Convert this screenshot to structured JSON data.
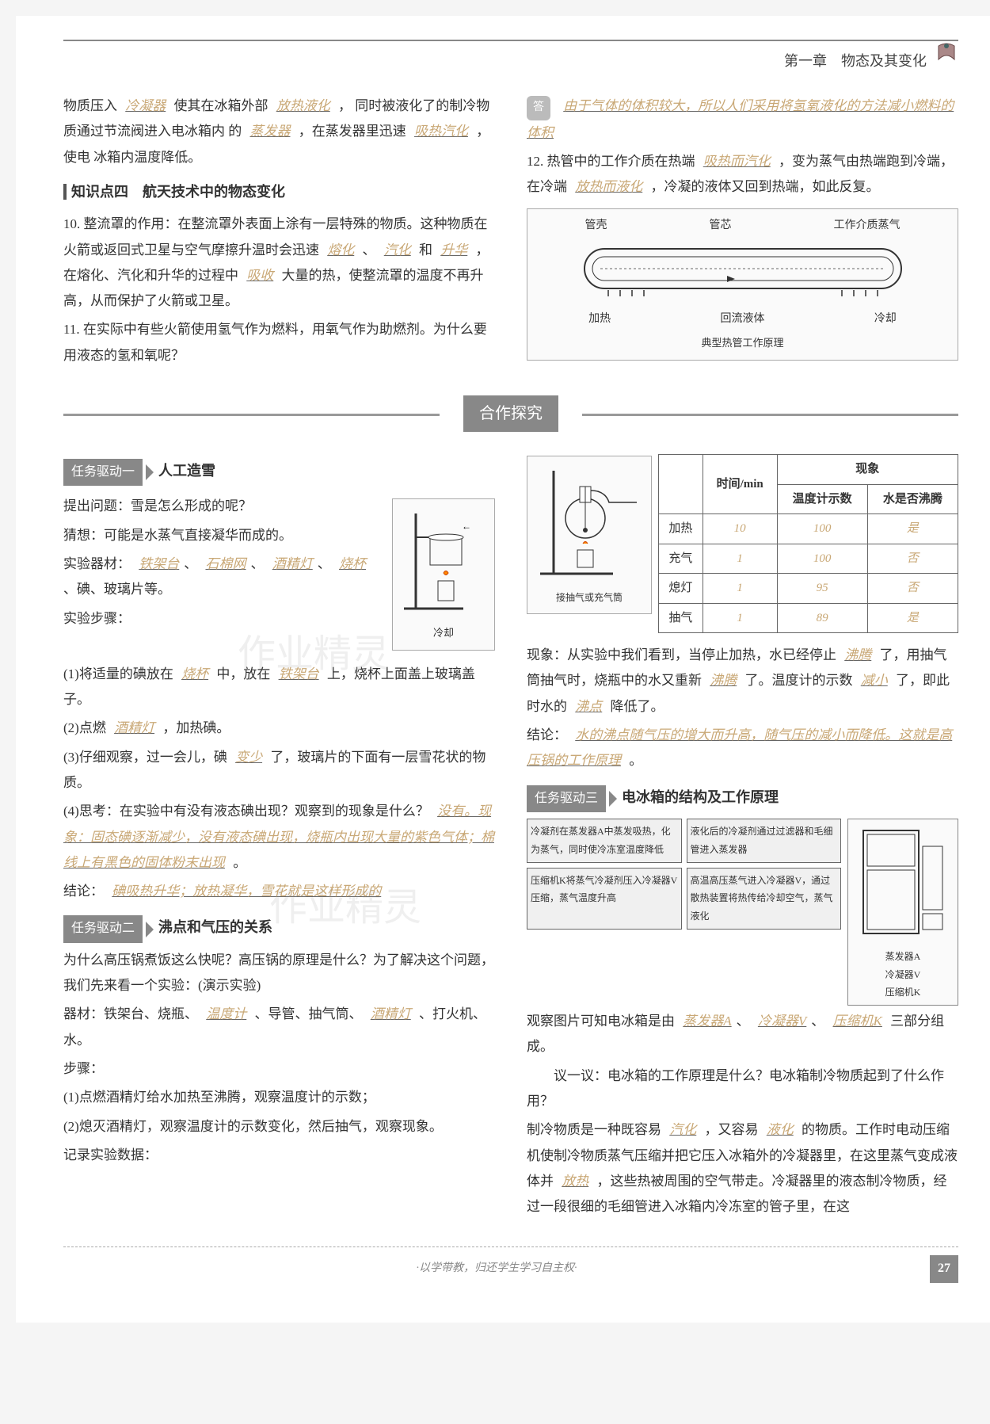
{
  "header": {
    "chapter": "第一章　物态及其变化"
  },
  "top_left": {
    "line1_a": "物质压入",
    "blank1": "冷凝器",
    "line1_b": "使其在冰箱外部",
    "blank2": "放热液化",
    "line1_c": "，",
    "line2": "同时被液化了的制冷物质通过节流阀进入电冰箱内",
    "line3_a": "的",
    "blank3": "蒸发器",
    "line3_b": "，在蒸发器里迅速",
    "blank4": "吸热汽化",
    "line3_c": "，使电",
    "line4": "冰箱内温度降低。"
  },
  "kp4": {
    "label": "知识点四　航天技术中的物态变化"
  },
  "q10": {
    "prefix": "10. 整流罩的作用：在整流罩外表面上涂有一层特殊的物质。这种物质在火箭或返回式卫星与空气摩擦升温时会迅速",
    "b1": "熔化",
    "s1": "、",
    "b2": "汽化",
    "s2": "和",
    "b3": "升华",
    "mid": "，在熔化、汽化和升华的过程中",
    "b4": "吸收",
    "suffix": "大量的热，使整流罩的温度不再升高，从而保护了火箭或卫星。"
  },
  "q11": {
    "text": "11. 在实际中有些火箭使用氢气作为燃料，用氧气作为助燃剂。为什么要用液态的氢和氧呢？"
  },
  "top_right": {
    "ans_label": "答",
    "ans_text": "由于气体的体积较大，所以人们采用将氢氧液化的方法减小燃料的体积"
  },
  "q12": {
    "prefix": "12. 热管中的工作介质在热端",
    "b1": "吸热而汽化",
    "mid1": "，变为蒸气由热端跑到冷端，在冷端",
    "b2": "放热而液化",
    "suffix": "，冷凝的液体又回到热端，如此反复。"
  },
  "heatpipe": {
    "l1": "管壳",
    "l2": "管芯",
    "l3": "工作介质蒸气",
    "l4": "加热",
    "l5": "回流液体",
    "l6": "冷却",
    "caption": "典型热管工作原理"
  },
  "banner": "合作探究",
  "task1": {
    "badge": "任务驱动一",
    "title": "人工造雪",
    "q": "提出问题：雪是怎么形成的呢？",
    "guess": "猜想：可能是水蒸气直接凝华而成的。",
    "mat_prefix": "实验器材：",
    "m1": "铁架台",
    "m2": "石棉网",
    "m3": "酒精灯",
    "m4": "烧杯",
    "mat_suffix": "、碘、玻璃片等。",
    "steps_label": "实验步骤：",
    "s1_a": "(1)将适量的碘放在",
    "s1_b1": "烧杯",
    "s1_mid": "中，放在",
    "s1_b2": "铁架台",
    "s1_c": "上，烧杯上面盖上玻璃盖子。",
    "s2_a": "(2)点燃",
    "s2_b": "酒精灯",
    "s2_c": "，加热碘。",
    "s3_a": "(3)仔细观察，过一会儿，碘",
    "s3_b": "变少",
    "s3_c": "了，玻璃片的下面有一层雪花状的物质。",
    "s4_a": "(4)思考：在实验中有没有液态碘出现？观察到的现象是什么？",
    "s4_b": "没有。现象：固态碘逐渐减少，没有液态碘出现，烧瓶内出现大量的紫色气体；棉线上有黑色的固体粉末出现",
    "s4_c": "。",
    "conc_a": "结论：",
    "conc_b": "碘吸热升华；放热凝华，雪花就是这样形成的",
    "cool_label": "冷却"
  },
  "task2": {
    "badge": "任务驱动二",
    "title": "沸点和气压的关系",
    "intro": "为什么高压锅煮饭这么快呢？高压锅的原理是什么？为了解决这个问题，我们先来看一个实验：(演示实验)",
    "mat_a": "器材：铁架台、烧瓶、",
    "mat_b1": "温度计",
    "mat_m1": "、导管、抽气筒、",
    "mat_b2": "酒精灯",
    "mat_c": "、打火机、水。",
    "steps_label": "步骤：",
    "s1": "(1)点燃酒精灯给水加热至沸腾，观察温度计的示数；",
    "s2": "(2)熄灭酒精灯，观察温度计的示数变化，然后抽气，观察现象。",
    "rec": "记录实验数据：",
    "pump_label": "接抽气或充气筒"
  },
  "table": {
    "h_time": "时间/min",
    "h_phen": "现象",
    "h_temp": "温度计示数",
    "h_boil": "水是否沸腾",
    "rows": [
      {
        "label": "加热",
        "time": "10",
        "temp": "100",
        "boil": "是"
      },
      {
        "label": "充气",
        "time": "1",
        "temp": "100",
        "boil": "否"
      },
      {
        "label": "熄灯",
        "time": "1",
        "temp": "95",
        "boil": "否"
      },
      {
        "label": "抽气",
        "time": "1",
        "temp": "89",
        "boil": "是"
      }
    ]
  },
  "obs": {
    "a": "现象：从实验中我们看到，当停止加热，水已经停止",
    "b1": "沸腾",
    "m1": "了，用抽气筒抽气时，烧瓶中的水又重新",
    "b2": "沸腾",
    "m2": "了。温度计的示数",
    "b3": "减小",
    "m3": "了，即此时水的",
    "b4": "沸点",
    "c": "降低了。",
    "conc_a": "结论：",
    "conc_b": "水的沸点随气压的增大而升高，随气压的减小而降低。这就是高压锅的工作原理",
    "conc_c": "。"
  },
  "task3": {
    "badge": "任务驱动三",
    "title": "电冰箱的结构及工作原理",
    "box1": "冷凝剂在蒸发器A中蒸发吸热，化为蒸气，同时使冷冻室温度降低",
    "box2": "液化后的冷凝剂通过过滤器和毛细管进入蒸发器",
    "box3": "压缩机K将蒸气冷凝剂压入冷凝器V压缩，蒸气温度升高",
    "box4": "高温高压蒸气进入冷凝器V，通过散热装置将热传给冷却空气，蒸气液化",
    "parts_a": "蒸发器A",
    "parts_v": "冷凝器V",
    "parts_k": "压缩机K",
    "obs_a": "观察图片可知电冰箱是由",
    "ob1": "蒸发器A",
    "ob2": "冷凝器V",
    "ob3": "压缩机K",
    "obs_c": "三部分组成。",
    "disc": "议一议：电冰箱的工作原理是什么？电冰箱制冷物质起到了什么作用？",
    "p_a": "制冷物质是一种既容易",
    "pb1": "汽化",
    "p_m1": "，又容易",
    "pb2": "液化",
    "p_m2": "的物质。工作时电动压缩机使制冷物质蒸气压缩并把它压入冰箱外的冷凝器里，在这里蒸气变成液体并",
    "pb3": "放热",
    "p_c": "，这些热被周围的空气带走。冷凝器里的液态制冷物质，经过一段很细的毛细管进入冰箱内冷冻室的管子里，在这"
  },
  "footer": {
    "motto": "·以学带教，归还学生学习自主权·",
    "page": "27"
  },
  "watermark1": "作业精灵",
  "watermark2": "作业精灵",
  "colors": {
    "blank_color": "#c9a876",
    "badge_bg": "#888888",
    "text": "#333333"
  }
}
